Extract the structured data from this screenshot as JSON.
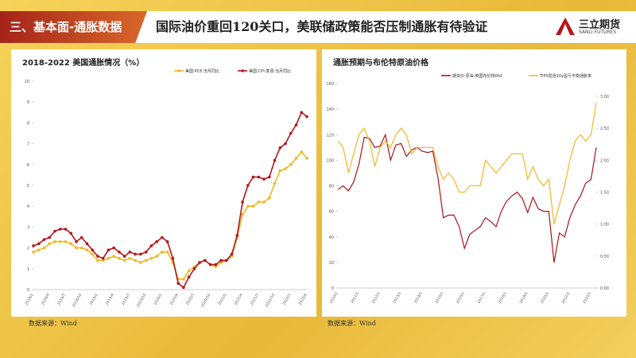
{
  "header": {
    "section": "三、基本面-通胀数据",
    "title": "国际油价重回120关口，美联储政策能否压制通胀有待验证",
    "logo_name": "三立期货",
    "logo_sub": "SANLI FUTURES"
  },
  "chart_data": [
    {
      "type": "line",
      "title": "2018-2022 美国通胀情况（%）",
      "source": "数据来源：Wind",
      "markers": true,
      "legend": "top-right",
      "categories": [
        "2018/1",
        null,
        null,
        "2018/4",
        null,
        null,
        "2018/7",
        null,
        null,
        "2018/10",
        null,
        null,
        "2019/1",
        null,
        null,
        "2019/4",
        null,
        null,
        "2019/7",
        null,
        null,
        "2019/10",
        null,
        null,
        "2020/1",
        null,
        null,
        "2020/4",
        null,
        null,
        "2020/7",
        null,
        null,
        "2020/10",
        null,
        null,
        "2021/1",
        null,
        null,
        "2021/4",
        null,
        null,
        "2021/7",
        null,
        null,
        "2021/10",
        null,
        null,
        "2022/1",
        null,
        null,
        "2022/4"
      ],
      "series": [
        {
          "name": "美国:PCE:当月同比",
          "color": "#f2b824",
          "values": [
            1.8,
            1.9,
            2.0,
            2.2,
            2.3,
            2.3,
            2.3,
            2.2,
            2.0,
            2.0,
            1.9,
            1.7,
            1.4,
            1.4,
            1.5,
            1.6,
            1.5,
            1.4,
            1.5,
            1.4,
            1.3,
            1.4,
            1.5,
            1.6,
            1.8,
            1.8,
            1.3,
            0.5,
            0.5,
            0.9,
            1.1,
            1.3,
            1.4,
            1.2,
            1.1,
            1.3,
            1.4,
            1.6,
            2.5,
            3.6,
            4.0,
            4.0,
            4.2,
            4.2,
            4.4,
            5.1,
            5.7,
            5.8,
            6.0,
            6.3,
            6.6,
            6.3
          ]
        },
        {
          "name": "美国:CPI:季调:当月同比",
          "color": "#b3161c",
          "values": [
            2.1,
            2.2,
            2.4,
            2.5,
            2.8,
            2.9,
            2.9,
            2.7,
            2.3,
            2.5,
            2.2,
            1.9,
            1.6,
            1.5,
            1.9,
            2.0,
            1.8,
            1.6,
            1.8,
            1.7,
            1.7,
            1.8,
            2.1,
            2.3,
            2.5,
            2.3,
            1.5,
            0.3,
            0.1,
            0.6,
            1.0,
            1.3,
            1.4,
            1.2,
            1.2,
            1.4,
            1.4,
            1.7,
            2.6,
            4.2,
            5.0,
            5.4,
            5.4,
            5.3,
            5.4,
            6.2,
            6.8,
            7.0,
            7.5,
            7.9,
            8.5,
            8.3
          ]
        }
      ],
      "ylim": [
        0,
        10
      ],
      "yticks": [
        0,
        1,
        2,
        3,
        4,
        5,
        6,
        7,
        8,
        9,
        10
      ]
    },
    {
      "type": "line",
      "title": "通胀预期与布伦特原油价格",
      "source": "数据来源：Wind",
      "markers": false,
      "legend": "top",
      "categories": [
        "2010/1",
        null,
        null,
        null,
        "2011/1",
        null,
        null,
        null,
        "2012/1",
        null,
        null,
        null,
        "2013/1",
        null,
        null,
        null,
        "2014/1",
        null,
        null,
        null,
        "2015/1",
        null,
        null,
        null,
        "2016/1",
        null,
        null,
        null,
        "2017/1",
        null,
        null,
        null,
        "2018/1",
        null,
        null,
        null,
        "2019/1",
        null,
        null,
        null,
        "2020/1",
        null,
        null,
        null,
        "2021/1",
        null,
        null,
        null,
        "2022/1",
        null
      ],
      "series": [
        {
          "name": "期货价:原油:英国布伦特Dtd",
          "color": "#a8141b",
          "values": [
            77,
            80,
            76,
            83,
            97,
            118,
            117,
            110,
            111,
            120,
            100,
            112,
            113,
            103,
            108,
            110,
            107,
            106,
            107,
            86,
            55,
            57,
            57,
            48,
            31,
            42,
            45,
            48,
            55,
            52,
            48,
            60,
            68,
            72,
            75,
            70,
            59,
            71,
            62,
            60,
            60,
            20,
            43,
            40,
            55,
            65,
            72,
            82,
            85,
            110
          ]
        },
        {
          "name": "TIPS隐含10y盈亏平衡通胀率",
          "color": "#f2b824",
          "axis": "y2",
          "values": [
            2.3,
            2.2,
            1.8,
            2.1,
            2.4,
            2.5,
            2.3,
            1.9,
            2.2,
            2.3,
            2.2,
            2.4,
            2.5,
            2.4,
            2.1,
            2.2,
            2.2,
            2.2,
            2.2,
            1.9,
            1.7,
            1.8,
            1.7,
            1.5,
            1.5,
            1.6,
            1.6,
            1.6,
            2.0,
            1.9,
            1.8,
            1.9,
            2.0,
            2.1,
            2.1,
            2.1,
            1.7,
            1.9,
            1.7,
            1.6,
            1.7,
            1.0,
            1.3,
            1.6,
            2.0,
            2.3,
            2.4,
            2.3,
            2.4,
            2.9
          ]
        }
      ],
      "ylim": [
        0,
        160
      ],
      "yticks": [
        0,
        20,
        40,
        60,
        80,
        100,
        120,
        140,
        160
      ],
      "y2lim": [
        0,
        3.2
      ],
      "y2ticks": [
        {
          "value": 0,
          "label": "0.00"
        },
        {
          "value": 0.5,
          "label": "0.50"
        },
        {
          "value": 1,
          "label": "1.00"
        },
        {
          "value": 1.5,
          "label": "1.50"
        },
        {
          "value": 2,
          "label": "2.00"
        },
        {
          "value": 2.5,
          "label": "2.50"
        },
        {
          "value": 3,
          "label": "3.00"
        }
      ]
    }
  ]
}
